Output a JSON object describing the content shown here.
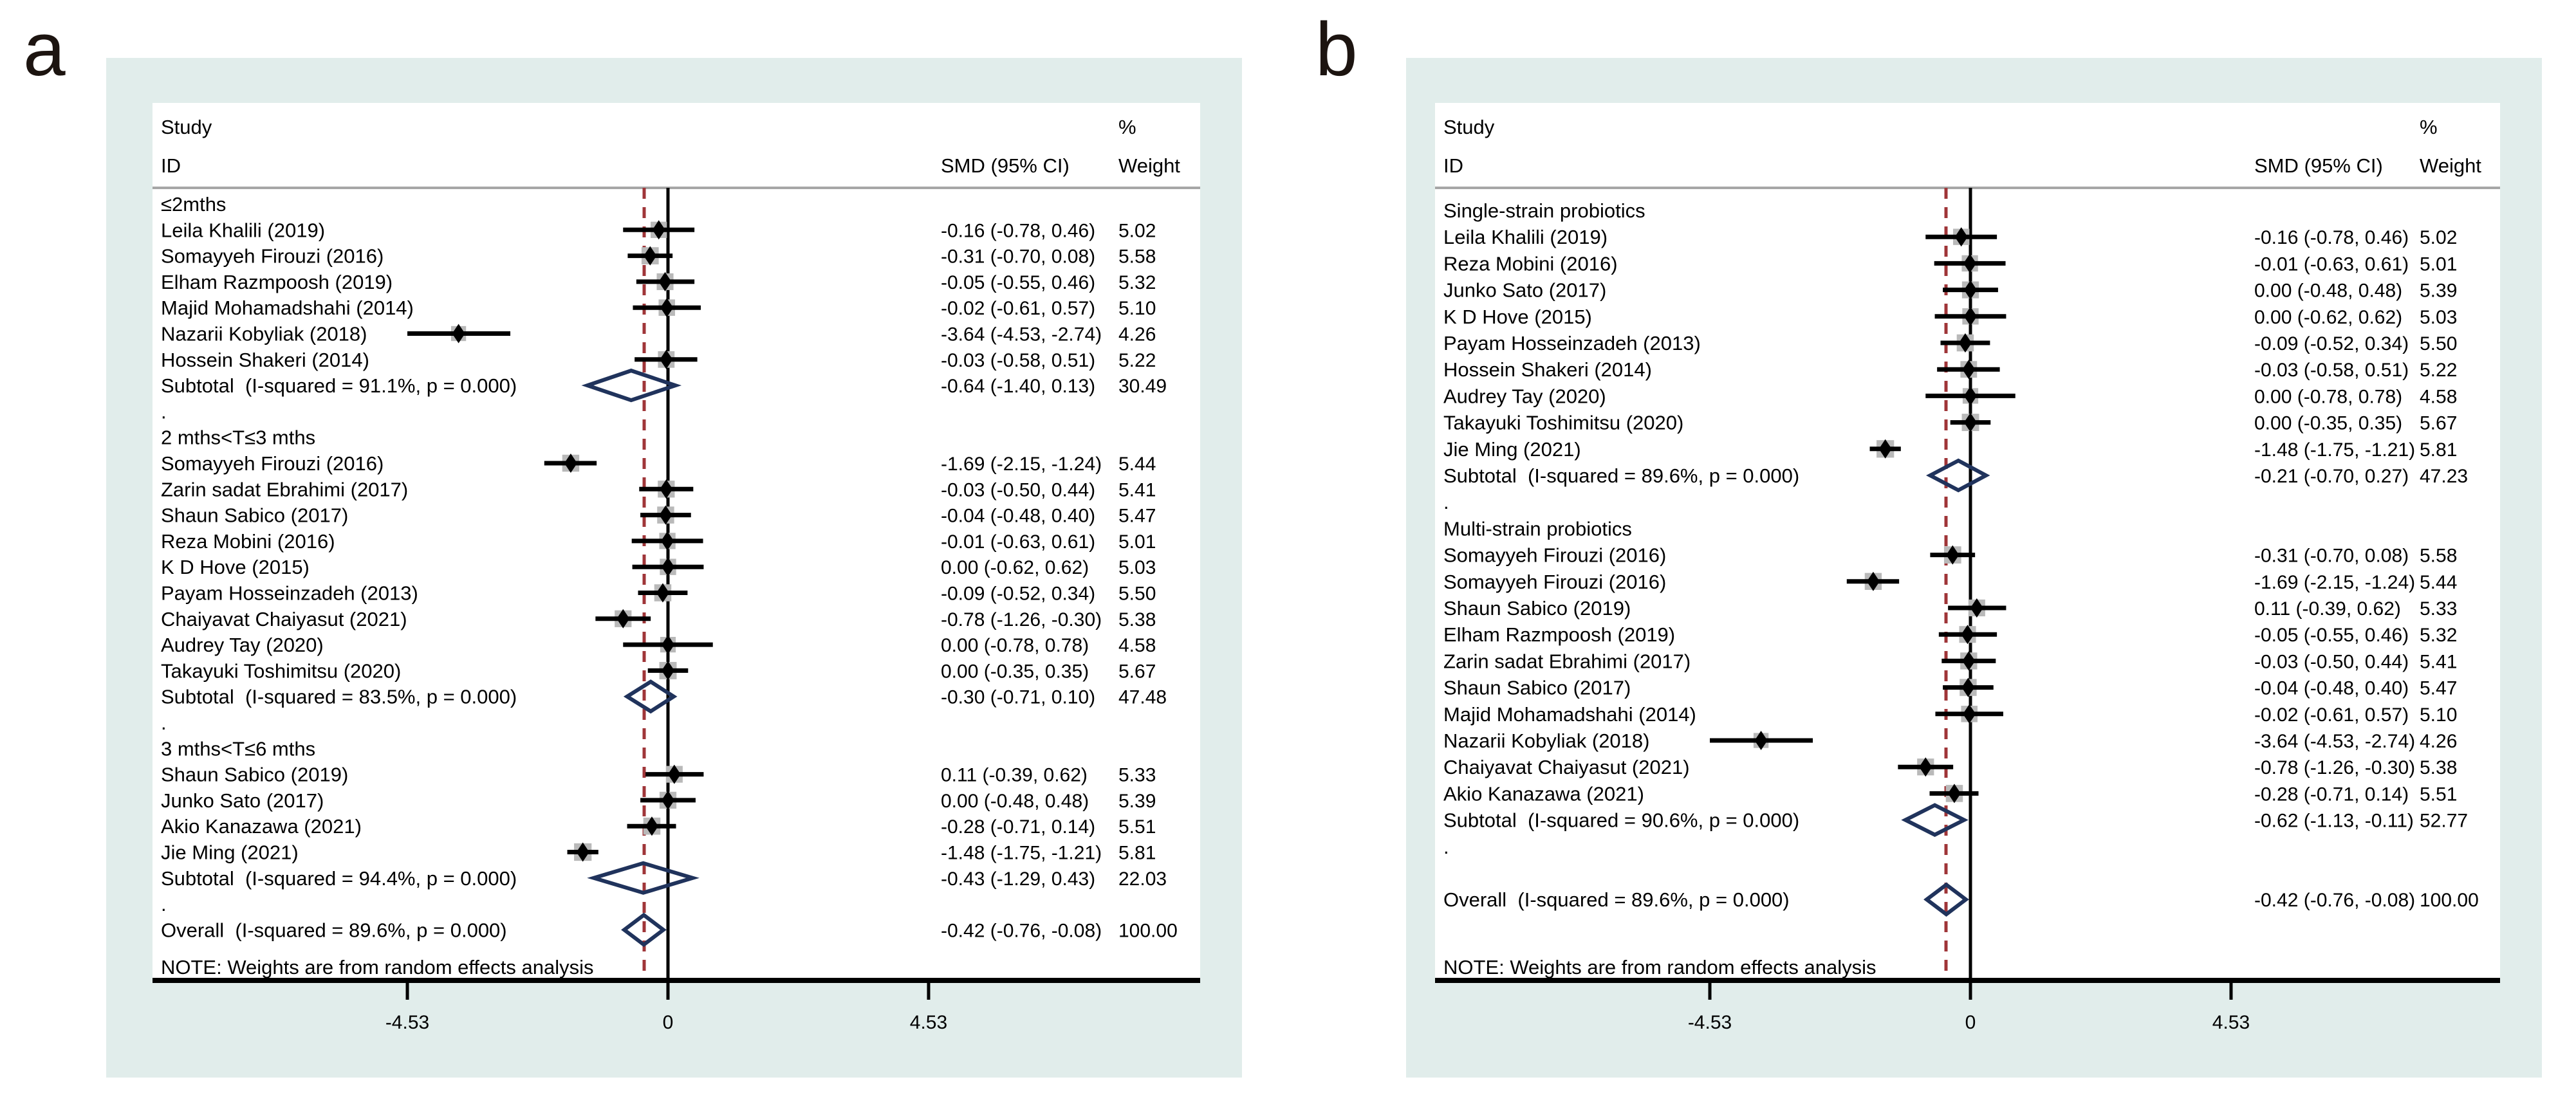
{
  "figure_labels": {
    "a": "a",
    "b": "b"
  },
  "colors": {
    "page_bg": "#ffffff",
    "panel_bg": "#e1edeb",
    "plot_bg": "#ffffff",
    "text": "#000000",
    "header_separator": "#a6a6a6",
    "axis": "#000000",
    "zero_line": "#000000",
    "dashed_ref_line": "#9f3538",
    "pooled_diamond": "#20335c",
    "weight_box": "#b9b9b9",
    "marker": "#000000",
    "panel_letter": "#1c1410"
  },
  "chart_data": [
    {
      "type": "forest",
      "panel": "a",
      "header": {
        "col1_line1": "Study",
        "col1_line2": "ID",
        "col2": "SMD (95% CI)",
        "col3_line1": "%",
        "col3_line2": "Weight"
      },
      "axis": {
        "ticks": [
          -4.53,
          0,
          4.53
        ],
        "tick_labels": [
          "-4.53",
          "0",
          "4.53"
        ],
        "zero_line": 0,
        "dashed_ref": -0.42,
        "xlabel": ""
      },
      "note": "NOTE: Weights are from random effects analysis",
      "blank_row_before_overall": false,
      "groups": [
        {
          "label": "≤2mths",
          "studies": [
            {
              "label": "Leila Khalili (2019)",
              "est": -0.16,
              "lo": -0.78,
              "hi": 0.46,
              "smd": "-0.16 (-0.78, 0.46)",
              "weight": "5.02"
            },
            {
              "label": "Somayyeh Firouzi (2016)",
              "est": -0.31,
              "lo": -0.7,
              "hi": 0.08,
              "smd": "-0.31 (-0.70, 0.08)",
              "weight": "5.58"
            },
            {
              "label": "Elham Razmpoosh (2019)",
              "est": -0.05,
              "lo": -0.55,
              "hi": 0.46,
              "smd": "-0.05 (-0.55, 0.46)",
              "weight": "5.32"
            },
            {
              "label": "Majid Mohamadshahi (2014)",
              "est": -0.02,
              "lo": -0.61,
              "hi": 0.57,
              "smd": "-0.02 (-0.61, 0.57)",
              "weight": "5.10"
            },
            {
              "label": "Nazarii Kobyliak (2018)",
              "est": -3.64,
              "lo": -4.53,
              "hi": -2.74,
              "smd": "-3.64 (-4.53, -2.74)",
              "weight": "4.26"
            },
            {
              "label": "Hossein Shakeri (2014)",
              "est": -0.03,
              "lo": -0.58,
              "hi": 0.51,
              "smd": "-0.03 (-0.58, 0.51)",
              "weight": "5.22"
            }
          ],
          "subtotal": {
            "label": "Subtotal  (I-squared = 91.1%, p = 0.000)",
            "est": -0.64,
            "lo": -1.4,
            "hi": 0.13,
            "smd": "-0.64 (-1.40, 0.13)",
            "weight": "30.49"
          }
        },
        {
          "label": "2 mths<T≤3 mths",
          "studies": [
            {
              "label": "Somayyeh Firouzi (2016)",
              "est": -1.69,
              "lo": -2.15,
              "hi": -1.24,
              "smd": "-1.69 (-2.15, -1.24)",
              "weight": "5.44"
            },
            {
              "label": "Zarin sadat Ebrahimi (2017)",
              "est": -0.03,
              "lo": -0.5,
              "hi": 0.44,
              "smd": "-0.03 (-0.50, 0.44)",
              "weight": "5.41"
            },
            {
              "label": "Shaun Sabico (2017)",
              "est": -0.04,
              "lo": -0.48,
              "hi": 0.4,
              "smd": "-0.04 (-0.48, 0.40)",
              "weight": "5.47"
            },
            {
              "label": "Reza Mobini (2016)",
              "est": -0.01,
              "lo": -0.63,
              "hi": 0.61,
              "smd": "-0.01 (-0.63, 0.61)",
              "weight": "5.01"
            },
            {
              "label": "K D Hove (2015)",
              "est": 0.0,
              "lo": -0.62,
              "hi": 0.62,
              "smd": "0.00 (-0.62, 0.62)",
              "weight": "5.03"
            },
            {
              "label": "Payam Hosseinzadeh (2013)",
              "est": -0.09,
              "lo": -0.52,
              "hi": 0.34,
              "smd": "-0.09 (-0.52, 0.34)",
              "weight": "5.50"
            },
            {
              "label": "Chaiyavat Chaiyasut (2021)",
              "est": -0.78,
              "lo": -1.26,
              "hi": -0.3,
              "smd": "-0.78 (-1.26, -0.30)",
              "weight": "5.38"
            },
            {
              "label": "Audrey Tay (2020)",
              "est": 0.0,
              "lo": -0.78,
              "hi": 0.78,
              "smd": "0.00 (-0.78, 0.78)",
              "weight": "4.58"
            },
            {
              "label": "Takayuki Toshimitsu (2020)",
              "est": 0.0,
              "lo": -0.35,
              "hi": 0.35,
              "smd": "0.00 (-0.35, 0.35)",
              "weight": "5.67"
            }
          ],
          "subtotal": {
            "label": "Subtotal  (I-squared = 83.5%, p = 0.000)",
            "est": -0.3,
            "lo": -0.71,
            "hi": 0.1,
            "smd": "-0.30 (-0.71, 0.10)",
            "weight": "47.48"
          }
        },
        {
          "label": "3 mths<T≤6 mths",
          "studies": [
            {
              "label": "Shaun Sabico (2019)",
              "est": 0.11,
              "lo": -0.39,
              "hi": 0.62,
              "smd": "0.11 (-0.39, 0.62)",
              "weight": "5.33"
            },
            {
              "label": "Junko Sato (2017)",
              "est": 0.0,
              "lo": -0.48,
              "hi": 0.48,
              "smd": "0.00 (-0.48, 0.48)",
              "weight": "5.39"
            },
            {
              "label": "Akio Kanazawa (2021)",
              "est": -0.28,
              "lo": -0.71,
              "hi": 0.14,
              "smd": "-0.28 (-0.71, 0.14)",
              "weight": "5.51"
            },
            {
              "label": "Jie Ming (2021)",
              "est": -1.48,
              "lo": -1.75,
              "hi": -1.21,
              "smd": "-1.48 (-1.75, -1.21)",
              "weight": "5.81"
            }
          ],
          "subtotal": {
            "label": "Subtotal  (I-squared = 94.4%, p = 0.000)",
            "est": -0.43,
            "lo": -1.29,
            "hi": 0.43,
            "smd": "-0.43 (-1.29, 0.43)",
            "weight": "22.03"
          }
        }
      ],
      "overall": {
        "label": "Overall  (I-squared = 89.6%, p = 0.000)",
        "est": -0.42,
        "lo": -0.76,
        "hi": -0.08,
        "smd": "-0.42 (-0.76, -0.08)",
        "weight": "100.00"
      }
    },
    {
      "type": "forest",
      "panel": "b",
      "header": {
        "col1_line1": "Study",
        "col1_line2": "ID",
        "col2": "SMD (95% CI)",
        "col3_line1": "%",
        "col3_line2": "Weight"
      },
      "axis": {
        "ticks": [
          -4.53,
          0,
          4.53
        ],
        "tick_labels": [
          "-4.53",
          "0",
          "4.53"
        ],
        "zero_line": 0,
        "dashed_ref": -0.42,
        "xlabel": ""
      },
      "note": "NOTE: Weights are from random effects analysis",
      "blank_row_before_overall": true,
      "groups": [
        {
          "label": "Single-strain probiotics",
          "studies": [
            {
              "label": "Leila Khalili (2019)",
              "est": -0.16,
              "lo": -0.78,
              "hi": 0.46,
              "smd": "-0.16 (-0.78, 0.46)",
              "weight": "5.02"
            },
            {
              "label": "Reza Mobini (2016)",
              "est": -0.01,
              "lo": -0.63,
              "hi": 0.61,
              "smd": "-0.01 (-0.63, 0.61)",
              "weight": "5.01"
            },
            {
              "label": "Junko Sato (2017)",
              "est": 0.0,
              "lo": -0.48,
              "hi": 0.48,
              "smd": "0.00 (-0.48, 0.48)",
              "weight": "5.39"
            },
            {
              "label": "K D Hove (2015)",
              "est": 0.0,
              "lo": -0.62,
              "hi": 0.62,
              "smd": "0.00 (-0.62, 0.62)",
              "weight": "5.03"
            },
            {
              "label": "Payam Hosseinzadeh (2013)",
              "est": -0.09,
              "lo": -0.52,
              "hi": 0.34,
              "smd": "-0.09 (-0.52, 0.34)",
              "weight": "5.50"
            },
            {
              "label": "Hossein Shakeri (2014)",
              "est": -0.03,
              "lo": -0.58,
              "hi": 0.51,
              "smd": "-0.03 (-0.58, 0.51)",
              "weight": "5.22"
            },
            {
              "label": "Audrey Tay (2020)",
              "est": 0.0,
              "lo": -0.78,
              "hi": 0.78,
              "smd": "0.00 (-0.78, 0.78)",
              "weight": "4.58"
            },
            {
              "label": "Takayuki Toshimitsu (2020)",
              "est": 0.0,
              "lo": -0.35,
              "hi": 0.35,
              "smd": "0.00 (-0.35, 0.35)",
              "weight": "5.67"
            },
            {
              "label": "Jie Ming (2021)",
              "est": -1.48,
              "lo": -1.75,
              "hi": -1.21,
              "smd": "-1.48 (-1.75, -1.21)",
              "weight": "5.81"
            }
          ],
          "subtotal": {
            "label": "Subtotal  (I-squared = 89.6%, p = 0.000)",
            "est": -0.21,
            "lo": -0.7,
            "hi": 0.27,
            "smd": "-0.21 (-0.70, 0.27)",
            "weight": "47.23"
          }
        },
        {
          "label": "Multi-strain probiotics",
          "studies": [
            {
              "label": "Somayyeh Firouzi (2016)",
              "est": -0.31,
              "lo": -0.7,
              "hi": 0.08,
              "smd": "-0.31 (-0.70, 0.08)",
              "weight": "5.58"
            },
            {
              "label": "Somayyeh Firouzi (2016)",
              "est": -1.69,
              "lo": -2.15,
              "hi": -1.24,
              "smd": "-1.69 (-2.15, -1.24)",
              "weight": "5.44"
            },
            {
              "label": "Shaun Sabico (2019)",
              "est": 0.11,
              "lo": -0.39,
              "hi": 0.62,
              "smd": "0.11 (-0.39, 0.62)",
              "weight": "5.33"
            },
            {
              "label": "Elham Razmpoosh (2019)",
              "est": -0.05,
              "lo": -0.55,
              "hi": 0.46,
              "smd": "-0.05 (-0.55, 0.46)",
              "weight": "5.32"
            },
            {
              "label": "Zarin sadat Ebrahimi (2017)",
              "est": -0.03,
              "lo": -0.5,
              "hi": 0.44,
              "smd": "-0.03 (-0.50, 0.44)",
              "weight": "5.41"
            },
            {
              "label": "Shaun Sabico (2017)",
              "est": -0.04,
              "lo": -0.48,
              "hi": 0.4,
              "smd": "-0.04 (-0.48, 0.40)",
              "weight": "5.47"
            },
            {
              "label": "Majid Mohamadshahi (2014)",
              "est": -0.02,
              "lo": -0.61,
              "hi": 0.57,
              "smd": "-0.02 (-0.61, 0.57)",
              "weight": "5.10"
            },
            {
              "label": "Nazarii Kobyliak (2018)",
              "est": -3.64,
              "lo": -4.53,
              "hi": -2.74,
              "smd": "-3.64 (-4.53, -2.74)",
              "weight": "4.26"
            },
            {
              "label": "Chaiyavat Chaiyasut (2021)",
              "est": -0.78,
              "lo": -1.26,
              "hi": -0.3,
              "smd": "-0.78 (-1.26, -0.30)",
              "weight": "5.38"
            },
            {
              "label": "Akio Kanazawa (2021)",
              "est": -0.28,
              "lo": -0.71,
              "hi": 0.14,
              "smd": "-0.28 (-0.71, 0.14)",
              "weight": "5.51"
            }
          ],
          "subtotal": {
            "label": "Subtotal  (I-squared = 90.6%, p = 0.000)",
            "est": -0.62,
            "lo": -1.13,
            "hi": -0.11,
            "smd": "-0.62 (-1.13, -0.11)",
            "weight": "52.77"
          }
        }
      ],
      "overall": {
        "label": "Overall  (I-squared = 89.6%, p = 0.000)",
        "est": -0.42,
        "lo": -0.76,
        "hi": -0.08,
        "smd": "-0.42 (-0.76, -0.08)",
        "weight": "100.00"
      }
    }
  ]
}
